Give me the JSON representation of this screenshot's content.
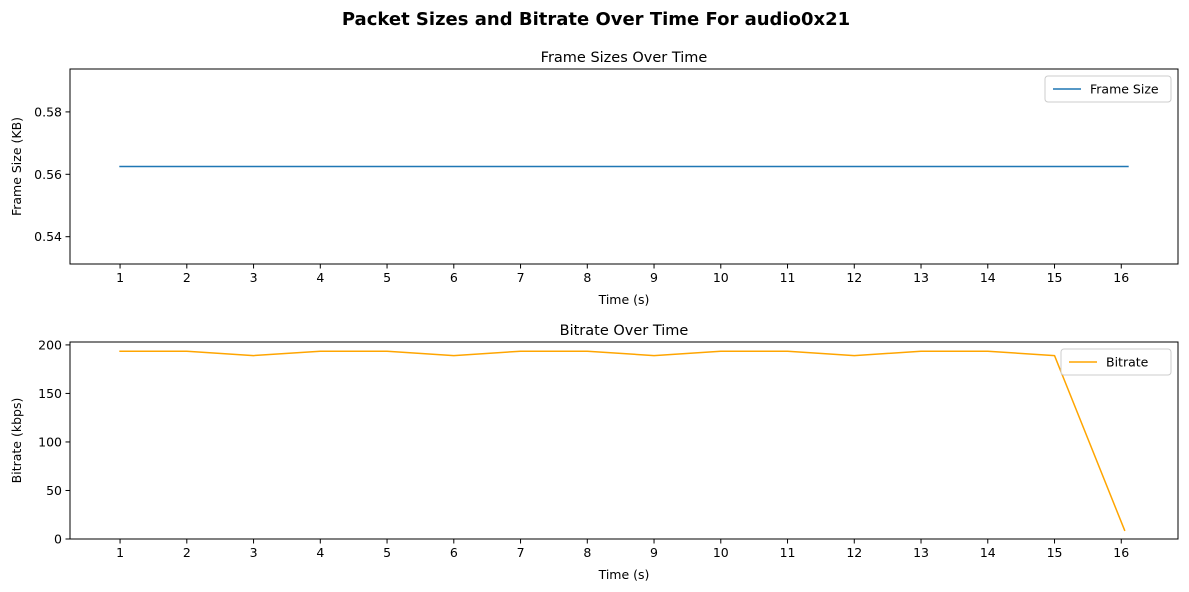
{
  "figure": {
    "title": "Packet Sizes and Bitrate Over Time For audio0x21"
  },
  "chart_data": [
    {
      "type": "line",
      "title": "Frame Sizes Over Time",
      "xlabel": "Time (s)",
      "ylabel": "Frame Size (KB)",
      "xlim": [
        0.25,
        16.85
      ],
      "ylim": [
        0.53125,
        0.59375
      ],
      "xticks": [
        1,
        2,
        3,
        4,
        5,
        6,
        7,
        8,
        9,
        10,
        11,
        12,
        13,
        14,
        15,
        16
      ],
      "yticks": [
        0.54,
        0.56,
        0.58
      ],
      "ytick_labels": [
        "0.54",
        "0.56",
        "0.58"
      ],
      "grid": false,
      "legend_placement": "upper-right",
      "series": [
        {
          "name": "Frame Size",
          "color": "#1f77b4",
          "x": [
            1,
            16.1
          ],
          "y": [
            0.5625,
            0.5625
          ]
        }
      ]
    },
    {
      "type": "line",
      "title": "Bitrate Over Time",
      "xlabel": "Time (s)",
      "ylabel": "Bitrate (kbps)",
      "xlim": [
        0.25,
        16.85
      ],
      "ylim": [
        0,
        203
      ],
      "xticks": [
        1,
        2,
        3,
        4,
        5,
        6,
        7,
        8,
        9,
        10,
        11,
        12,
        13,
        14,
        15,
        16
      ],
      "yticks": [
        0,
        50,
        100,
        150,
        200
      ],
      "ytick_labels": [
        "0",
        "50",
        "100",
        "150",
        "200"
      ],
      "grid": false,
      "legend_placement": "upper-right",
      "series": [
        {
          "name": "Bitrate",
          "color": "#ffa500",
          "x": [
            1,
            2,
            3,
            4,
            5,
            6,
            7,
            8,
            9,
            10,
            11,
            12,
            13,
            14,
            15,
            16.05
          ],
          "y": [
            193.5,
            193.5,
            189,
            193.5,
            193.5,
            189,
            193.5,
            193.5,
            189,
            193.5,
            193.5,
            189,
            193.5,
            193.5,
            189,
            9
          ]
        }
      ]
    }
  ]
}
